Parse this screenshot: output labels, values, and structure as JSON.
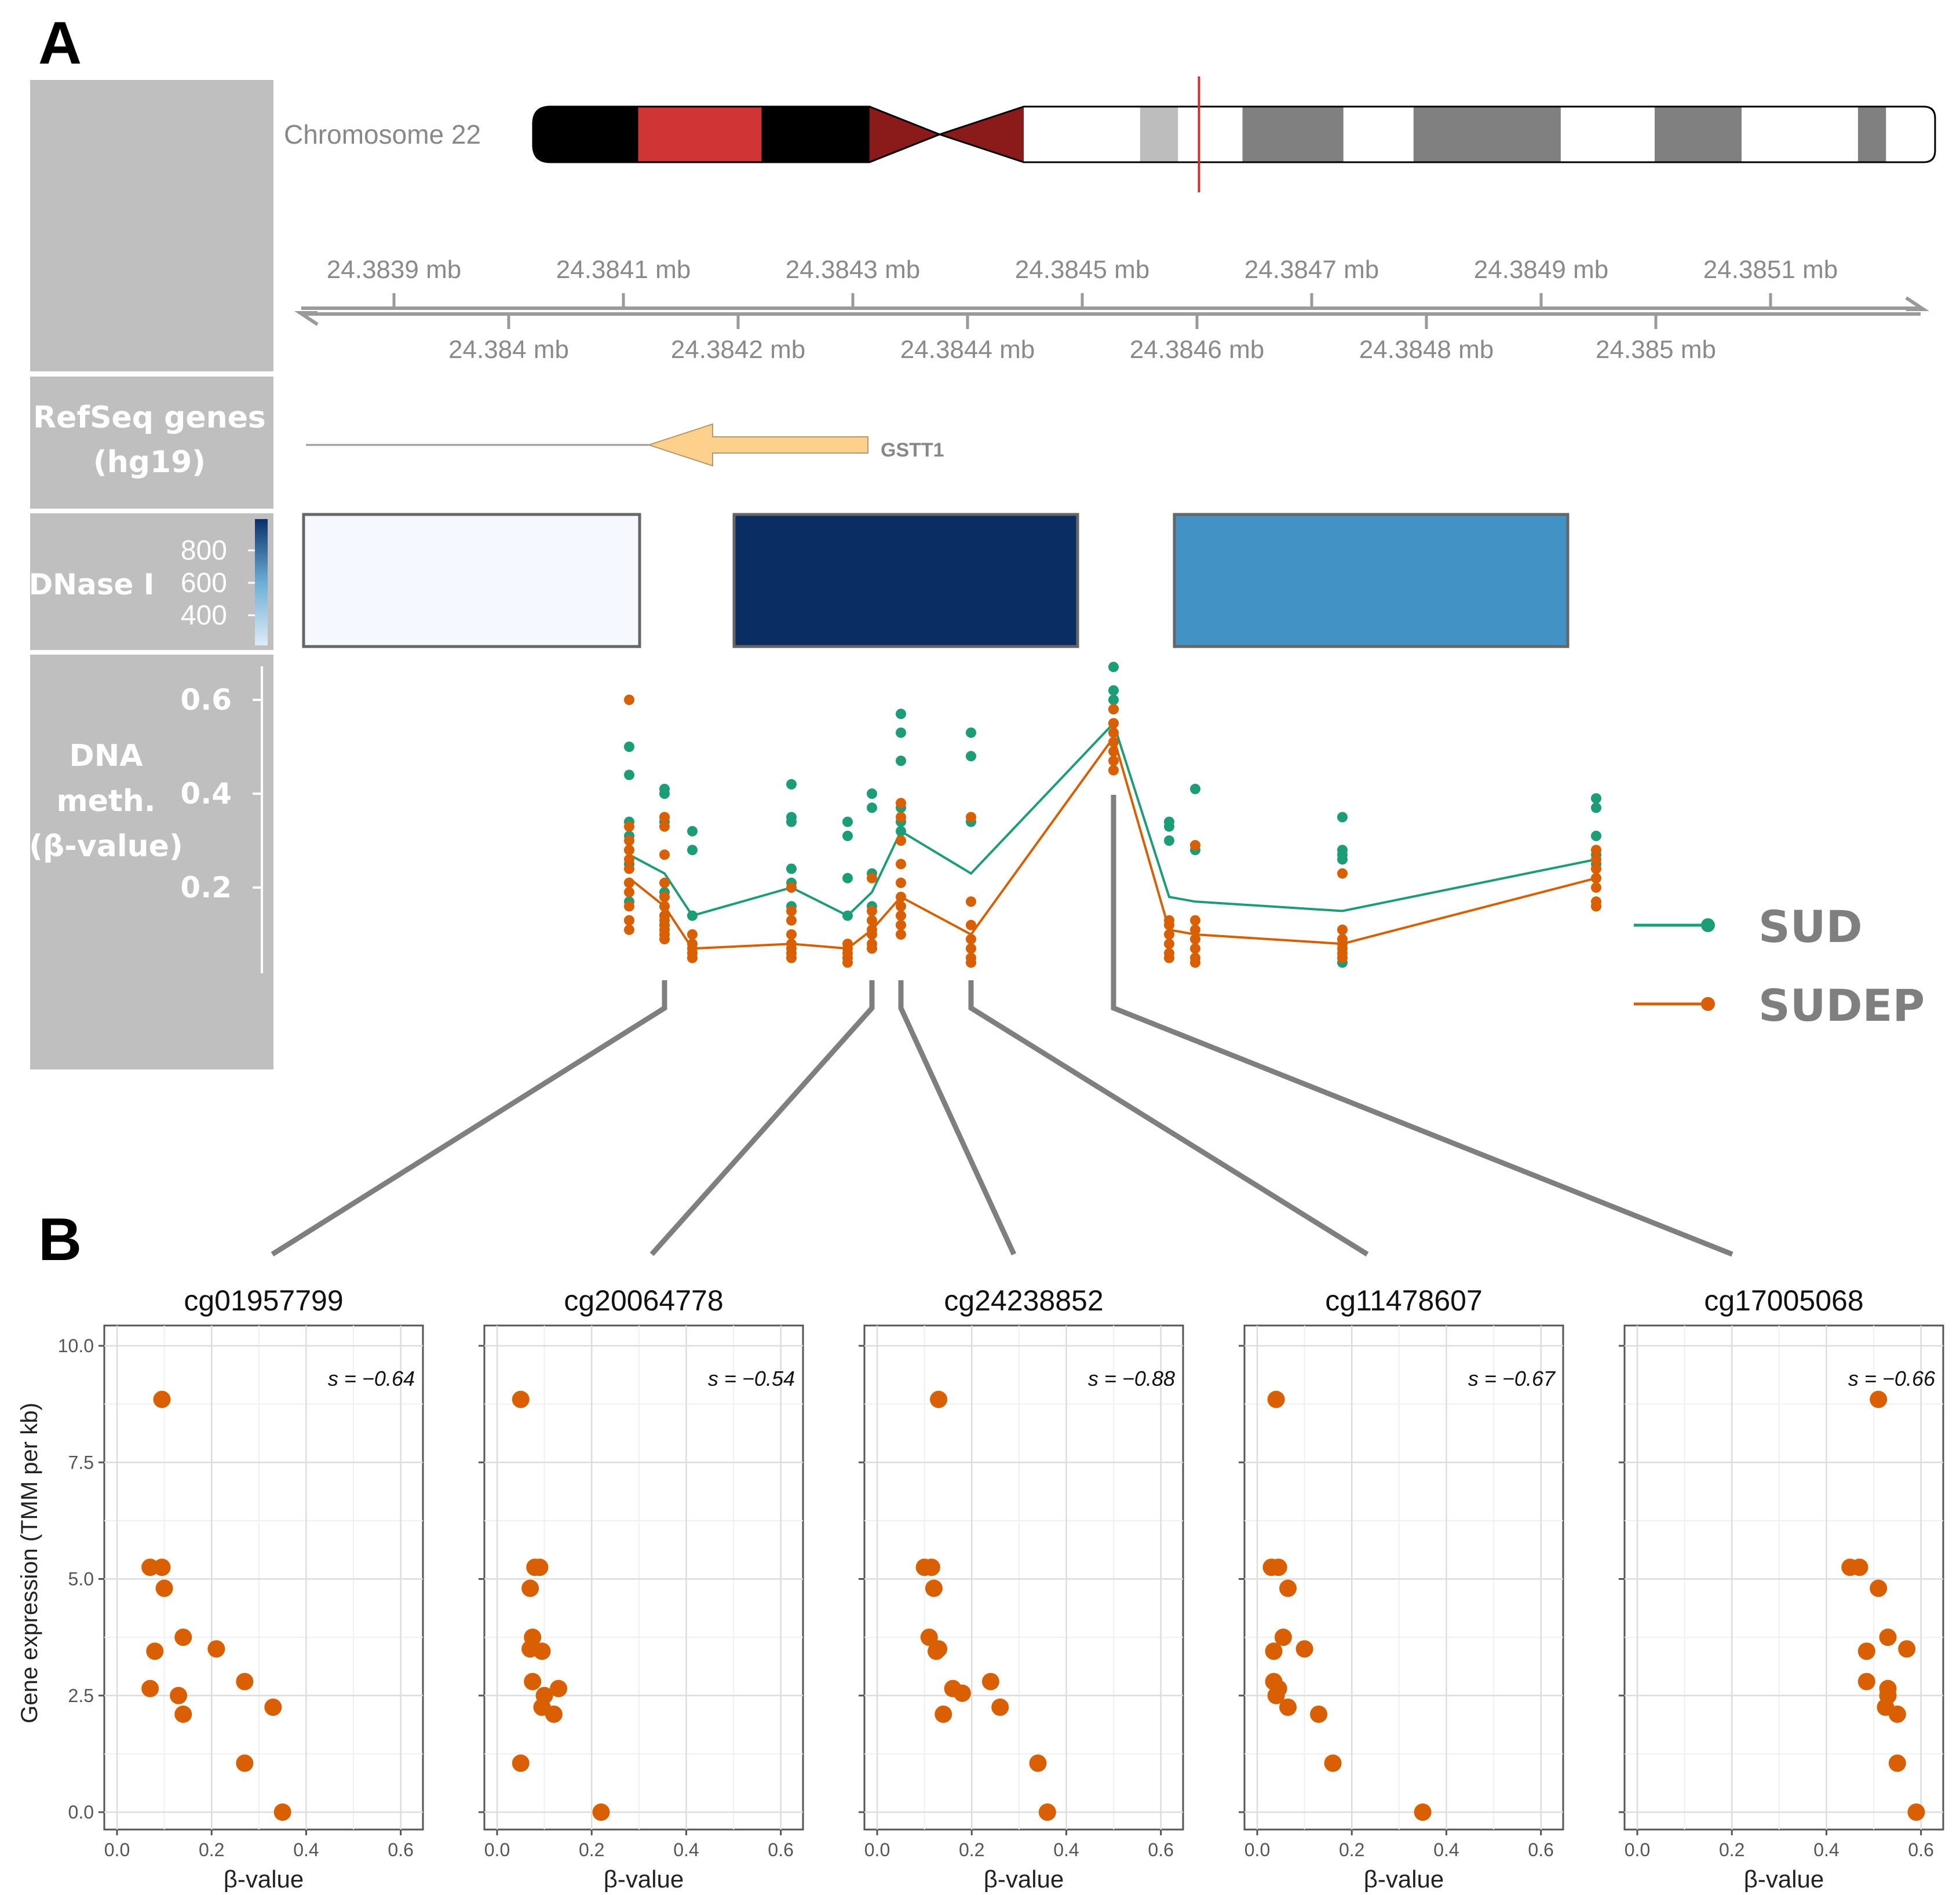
{
  "panels": {
    "a_label": "A",
    "b_label": "B"
  },
  "colors": {
    "sud": "#1b9e77",
    "sudep": "#d95f02",
    "track_bg": "#bfbfbf",
    "axis": "#9a9a9a",
    "connector": "#7f7f7f",
    "gene_arrow": "#fdd08c",
    "centromere": "#8b1a1a",
    "highlight_band": "#d32f2f",
    "ideogram_marker": "#d32f2f"
  },
  "ideogram": {
    "label": "Chromosome 22",
    "bands": [
      {
        "start": 0.0,
        "end": 0.075,
        "color": "#000000"
      },
      {
        "start": 0.075,
        "end": 0.163,
        "color": "#d03434"
      },
      {
        "start": 0.163,
        "end": 0.24,
        "color": "#000000"
      },
      {
        "start": 0.24,
        "end": 0.29,
        "color": "#8b1a1a"
      },
      {
        "start": 0.29,
        "end": 0.35,
        "color": "#8b1a1a"
      },
      {
        "start": 0.35,
        "end": 0.433,
        "color": "#ffffff"
      },
      {
        "start": 0.433,
        "end": 0.46,
        "color": "#bdbdbd"
      },
      {
        "start": 0.46,
        "end": 0.506,
        "color": "#ffffff"
      },
      {
        "start": 0.506,
        "end": 0.578,
        "color": "#808080"
      },
      {
        "start": 0.578,
        "end": 0.628,
        "color": "#ffffff"
      },
      {
        "start": 0.628,
        "end": 0.733,
        "color": "#808080"
      },
      {
        "start": 0.733,
        "end": 0.8,
        "color": "#ffffff"
      },
      {
        "start": 0.8,
        "end": 0.862,
        "color": "#808080"
      },
      {
        "start": 0.862,
        "end": 0.945,
        "color": "#ffffff"
      },
      {
        "start": 0.945,
        "end": 0.965,
        "color": "#808080"
      },
      {
        "start": 0.965,
        "end": 1.0,
        "color": "#ffffff"
      }
    ],
    "centromere_at": 0.29,
    "marker_at": 0.475
  },
  "genome_axis": {
    "range_mb": [
      24.38375,
      24.38519
    ],
    "upper_ticks": [
      {
        "value": 24.3839,
        "label": "24.3839 mb"
      },
      {
        "value": 24.3841,
        "label": "24.3841 mb"
      },
      {
        "value": 24.3843,
        "label": "24.3843 mb"
      },
      {
        "value": 24.3845,
        "label": "24.3845 mb"
      },
      {
        "value": 24.3847,
        "label": "24.3847 mb"
      },
      {
        "value": 24.3849,
        "label": "24.3849 mb"
      },
      {
        "value": 24.3851,
        "label": "24.3851 mb"
      }
    ],
    "lower_ticks": [
      {
        "value": 24.384,
        "label": "24.384 mb"
      },
      {
        "value": 24.3842,
        "label": "24.3842 mb"
      },
      {
        "value": 24.3844,
        "label": "24.3844 mb"
      },
      {
        "value": 24.3846,
        "label": "24.3846 mb"
      },
      {
        "value": 24.3848,
        "label": "24.3848 mb"
      },
      {
        "value": 24.385,
        "label": "24.385 mb"
      }
    ]
  },
  "tracks": {
    "refseq_line1": "RefSeq genes",
    "refseq_line2": "(hg19)",
    "dnase_label": "DNase I",
    "dnase_scale": [
      "800",
      "600",
      "400"
    ],
    "meth_line1": "DNA",
    "meth_line2": "meth.",
    "meth_line3": "(β-value)",
    "meth_ticks": [
      "0.6",
      "0.4",
      "0.2"
    ]
  },
  "gene": {
    "name": "GSTT1",
    "line_start_mb": 24.38376,
    "body_start_mb": 24.38406,
    "body_end_mb": 24.38425,
    "arrow_tip_mb": 24.38406
  },
  "dnase_regions": [
    {
      "start_mb": 24.38376,
      "end_mb": 24.38405,
      "signal": 350,
      "fill": "#f5f9ff"
    },
    {
      "start_mb": 24.38413,
      "end_mb": 24.38443,
      "signal": 880,
      "fill": "#0a2d64"
    },
    {
      "start_mb": 24.38452,
      "end_mb": 24.38486,
      "signal": 660,
      "fill": "#4292c6"
    }
  ],
  "methylation": {
    "ylim": [
      0.0,
      0.65
    ],
    "legend": [
      {
        "key": "sud",
        "label": "SUD"
      },
      {
        "key": "sudep",
        "label": "SUDEP"
      }
    ],
    "probes": [
      {
        "mb": 24.384036,
        "sud_mean": 0.27,
        "sudep_mean": 0.22,
        "sud": [
          0.5,
          0.44,
          0.34,
          0.31,
          0.28,
          0.25,
          0.21,
          0.17,
          0.13
        ],
        "sudep": [
          0.6,
          0.33,
          0.3,
          0.28,
          0.26,
          0.24,
          0.21,
          0.19,
          0.16,
          0.13,
          0.11
        ]
      },
      {
        "mb": 24.384065,
        "sud_mean": 0.23,
        "sudep_mean": 0.16,
        "sud": [
          0.41,
          0.4,
          0.35,
          0.34,
          0.19,
          0.18,
          0.16,
          0.14,
          0.12
        ],
        "sudep": [
          0.35,
          0.33,
          0.27,
          0.21,
          0.18,
          0.16,
          0.14,
          0.13,
          0.12,
          0.11,
          0.1,
          0.09
        ]
      },
      {
        "mb": 24.384089,
        "sud_mean": 0.14,
        "sudep_mean": 0.07,
        "sud": [
          0.32,
          0.28,
          0.14
        ],
        "sudep": [
          0.1,
          0.08,
          0.07,
          0.06,
          0.05
        ]
      },
      {
        "mb": 24.384176,
        "sud_mean": 0.2,
        "sudep_mean": 0.08,
        "sud": [
          0.42,
          0.35,
          0.34,
          0.24,
          0.21,
          0.16
        ],
        "sudep": [
          0.2,
          0.15,
          0.13,
          0.1,
          0.08,
          0.07,
          0.06,
          0.05
        ]
      },
      {
        "mb": 24.384225,
        "sud_mean": 0.14,
        "sudep_mean": 0.07,
        "sud": [
          0.34,
          0.31,
          0.22,
          0.14
        ],
        "sudep": [
          0.08,
          0.07,
          0.06,
          0.05,
          0.04
        ]
      },
      {
        "mb": 24.38425,
        "sud_mean": 0.19,
        "sudep_mean": 0.11,
        "sud": [
          0.4,
          0.37,
          0.23,
          0.16
        ],
        "sudep": [
          0.22,
          0.15,
          0.13,
          0.11,
          0.1,
          0.08,
          0.07
        ]
      },
      {
        "mb": 24.384275,
        "sud_mean": 0.32,
        "sudep_mean": 0.18,
        "sud": [
          0.57,
          0.53,
          0.47,
          0.37,
          0.34,
          0.32
        ],
        "sudep": [
          0.38,
          0.35,
          0.3,
          0.25,
          0.21,
          0.18,
          0.16,
          0.14,
          0.12,
          0.1
        ]
      },
      {
        "mb": 24.384335,
        "sud_mean": 0.23,
        "sudep_mean": 0.1,
        "sud": [
          0.53,
          0.48,
          0.34
        ],
        "sudep": [
          0.35,
          0.17,
          0.12,
          0.09,
          0.07,
          0.05,
          0.04
        ]
      },
      {
        "mb": 24.384459,
        "sud_mean": 0.55,
        "sudep_mean": 0.52,
        "sud": [
          0.67,
          0.62,
          0.6,
          0.58,
          0.55
        ],
        "sudep": [
          0.58,
          0.55,
          0.53,
          0.51,
          0.49,
          0.47,
          0.45
        ]
      },
      {
        "mb": 24.384508,
        "sud_mean": 0.18,
        "sudep_mean": 0.11,
        "sud": [
          0.34,
          0.33,
          0.3
        ],
        "sudep": [
          0.13,
          0.12,
          0.1,
          0.08,
          0.06,
          0.05
        ]
      },
      {
        "mb": 24.384531,
        "sud_mean": 0.17,
        "sudep_mean": 0.1,
        "sud": [
          0.41,
          0.29,
          0.28
        ],
        "sudep": [
          0.29,
          0.13,
          0.11,
          0.09,
          0.07,
          0.05,
          0.04
        ]
      },
      {
        "mb": 24.38466,
        "sud_mean": 0.15,
        "sudep_mean": 0.08,
        "sud": [
          0.35,
          0.28,
          0.27,
          0.26,
          0.04
        ],
        "sudep": [
          0.23,
          0.11,
          0.09,
          0.08,
          0.07,
          0.06,
          0.05
        ]
      },
      {
        "mb": 24.38488,
        "sud_mean": 0.26,
        "sudep_mean": 0.22,
        "sud": [
          0.39,
          0.37,
          0.31,
          0.27,
          0.25,
          0.22,
          0.16
        ],
        "sudep": [
          0.28,
          0.26,
          0.24,
          0.22,
          0.2,
          0.17,
          0.16
        ]
      }
    ]
  },
  "connectors": [
    {
      "probe_index": 1,
      "panel_index": 0
    },
    {
      "probe_index": 5,
      "panel_index": 1
    },
    {
      "probe_index": 6,
      "panel_index": 2
    },
    {
      "probe_index": 7,
      "panel_index": 3
    },
    {
      "probe_index": 8,
      "panel_index": 4
    }
  ],
  "chart_data": [
    {
      "type": "scatter",
      "title": "cg01957799",
      "annotation": "s = −0.64",
      "xlabel": "β-value",
      "ylabel": "Gene expression (TMM per kb)",
      "xlim": [
        0.0,
        0.62
      ],
      "ylim": [
        -0.1,
        10.0
      ],
      "x_ticks": [
        "0.0",
        "0.2",
        "0.4",
        "0.6"
      ],
      "y_ticks": [
        "0.0",
        "2.5",
        "5.0",
        "7.5",
        "10.0"
      ],
      "points": [
        [
          0.095,
          8.85
        ],
        [
          0.07,
          5.25
        ],
        [
          0.095,
          5.25
        ],
        [
          0.1,
          4.8
        ],
        [
          0.14,
          3.75
        ],
        [
          0.21,
          3.5
        ],
        [
          0.08,
          3.45
        ],
        [
          0.27,
          2.8
        ],
        [
          0.07,
          2.65
        ],
        [
          0.13,
          2.5
        ],
        [
          0.33,
          2.25
        ],
        [
          0.14,
          2.1
        ],
        [
          0.27,
          1.05
        ],
        [
          0.35,
          0.0
        ]
      ]
    },
    {
      "type": "scatter",
      "title": "cg20064778",
      "annotation": "s = −0.54",
      "xlabel": "β-value",
      "ylabel": "",
      "xlim": [
        0.0,
        0.62
      ],
      "ylim": [
        -0.1,
        10.0
      ],
      "x_ticks": [
        "0.0",
        "0.2",
        "0.4",
        "0.6"
      ],
      "y_ticks": [],
      "points": [
        [
          0.05,
          8.85
        ],
        [
          0.08,
          5.25
        ],
        [
          0.09,
          5.25
        ],
        [
          0.07,
          4.8
        ],
        [
          0.075,
          3.75
        ],
        [
          0.07,
          3.5
        ],
        [
          0.095,
          3.45
        ],
        [
          0.075,
          2.8
        ],
        [
          0.13,
          2.65
        ],
        [
          0.1,
          2.5
        ],
        [
          0.095,
          2.25
        ],
        [
          0.12,
          2.1
        ],
        [
          0.05,
          1.05
        ],
        [
          0.22,
          0.0
        ]
      ]
    },
    {
      "type": "scatter",
      "title": "cg24238852",
      "annotation": "s = −0.88",
      "xlabel": "β-value",
      "ylabel": "",
      "xlim": [
        0.0,
        0.62
      ],
      "ylim": [
        -0.1,
        10.0
      ],
      "x_ticks": [
        "0.0",
        "0.2",
        "0.4",
        "0.6"
      ],
      "y_ticks": [],
      "points": [
        [
          0.13,
          8.85
        ],
        [
          0.1,
          5.25
        ],
        [
          0.115,
          5.25
        ],
        [
          0.12,
          4.8
        ],
        [
          0.11,
          3.75
        ],
        [
          0.13,
          3.5
        ],
        [
          0.125,
          3.45
        ],
        [
          0.24,
          2.8
        ],
        [
          0.16,
          2.65
        ],
        [
          0.18,
          2.55
        ],
        [
          0.26,
          2.25
        ],
        [
          0.14,
          2.1
        ],
        [
          0.34,
          1.05
        ],
        [
          0.36,
          0.0
        ]
      ]
    },
    {
      "type": "scatter",
      "title": "cg11478607",
      "annotation": "s = −0.67",
      "xlabel": "β-value",
      "ylabel": "",
      "xlim": [
        0.0,
        0.62
      ],
      "ylim": [
        -0.1,
        10.0
      ],
      "x_ticks": [
        "0.0",
        "0.2",
        "0.4",
        "0.6"
      ],
      "y_ticks": [],
      "points": [
        [
          0.04,
          8.85
        ],
        [
          0.03,
          5.25
        ],
        [
          0.045,
          5.25
        ],
        [
          0.065,
          4.8
        ],
        [
          0.055,
          3.75
        ],
        [
          0.1,
          3.5
        ],
        [
          0.035,
          3.45
        ],
        [
          0.035,
          2.8
        ],
        [
          0.045,
          2.65
        ],
        [
          0.04,
          2.5
        ],
        [
          0.065,
          2.25
        ],
        [
          0.13,
          2.1
        ],
        [
          0.16,
          1.05
        ],
        [
          0.35,
          0.0
        ]
      ]
    },
    {
      "type": "scatter",
      "title": "cg17005068",
      "annotation": "s = −0.66",
      "xlabel": "β-value",
      "ylabel": "",
      "xlim": [
        0.0,
        0.62
      ],
      "ylim": [
        -0.1,
        10.0
      ],
      "x_ticks": [
        "0.0",
        "0.2",
        "0.4",
        "0.6"
      ],
      "y_ticks": [],
      "points": [
        [
          0.51,
          8.85
        ],
        [
          0.45,
          5.25
        ],
        [
          0.47,
          5.25
        ],
        [
          0.51,
          4.8
        ],
        [
          0.53,
          3.75
        ],
        [
          0.57,
          3.5
        ],
        [
          0.485,
          3.45
        ],
        [
          0.485,
          2.8
        ],
        [
          0.53,
          2.65
        ],
        [
          0.53,
          2.5
        ],
        [
          0.525,
          2.25
        ],
        [
          0.55,
          2.1
        ],
        [
          0.55,
          1.05
        ],
        [
          0.59,
          0.0
        ]
      ]
    }
  ]
}
